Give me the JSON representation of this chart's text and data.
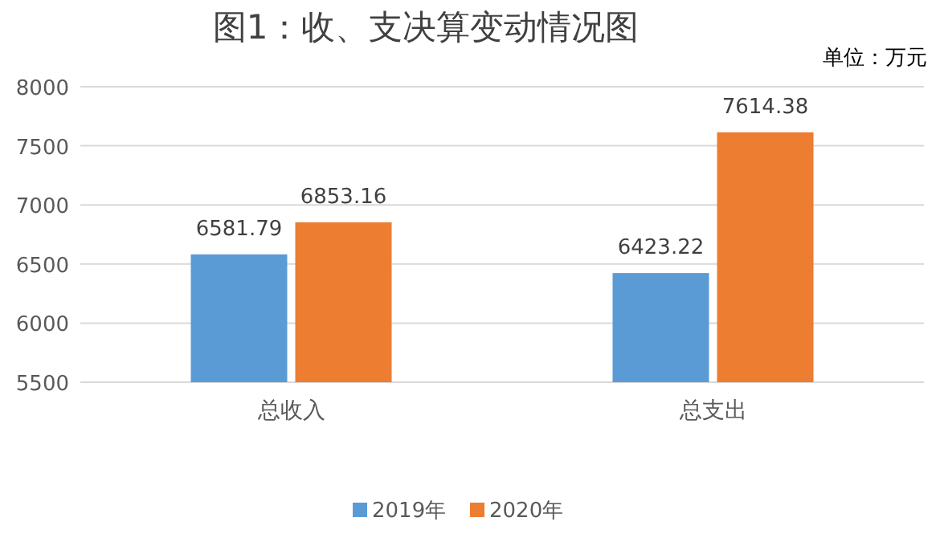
{
  "chart_data": {
    "type": "bar",
    "title": "图1：收、支决算变动情况图",
    "annotations": [
      "单位：万元"
    ],
    "categories": [
      "总收入",
      "总支出"
    ],
    "series": [
      {
        "name": "2019年",
        "color": "#5b9bd5",
        "values": [
          6581.79,
          6423.22
        ]
      },
      {
        "name": "2020年",
        "color": "#ed7d31",
        "values": [
          6853.16,
          7614.38
        ]
      }
    ],
    "ylim": [
      5500,
      8000
    ],
    "yticks": [
      5500,
      6000,
      6500,
      7000,
      7500,
      8000
    ],
    "grid": "y",
    "legend": "bottom",
    "data_labels": true
  }
}
